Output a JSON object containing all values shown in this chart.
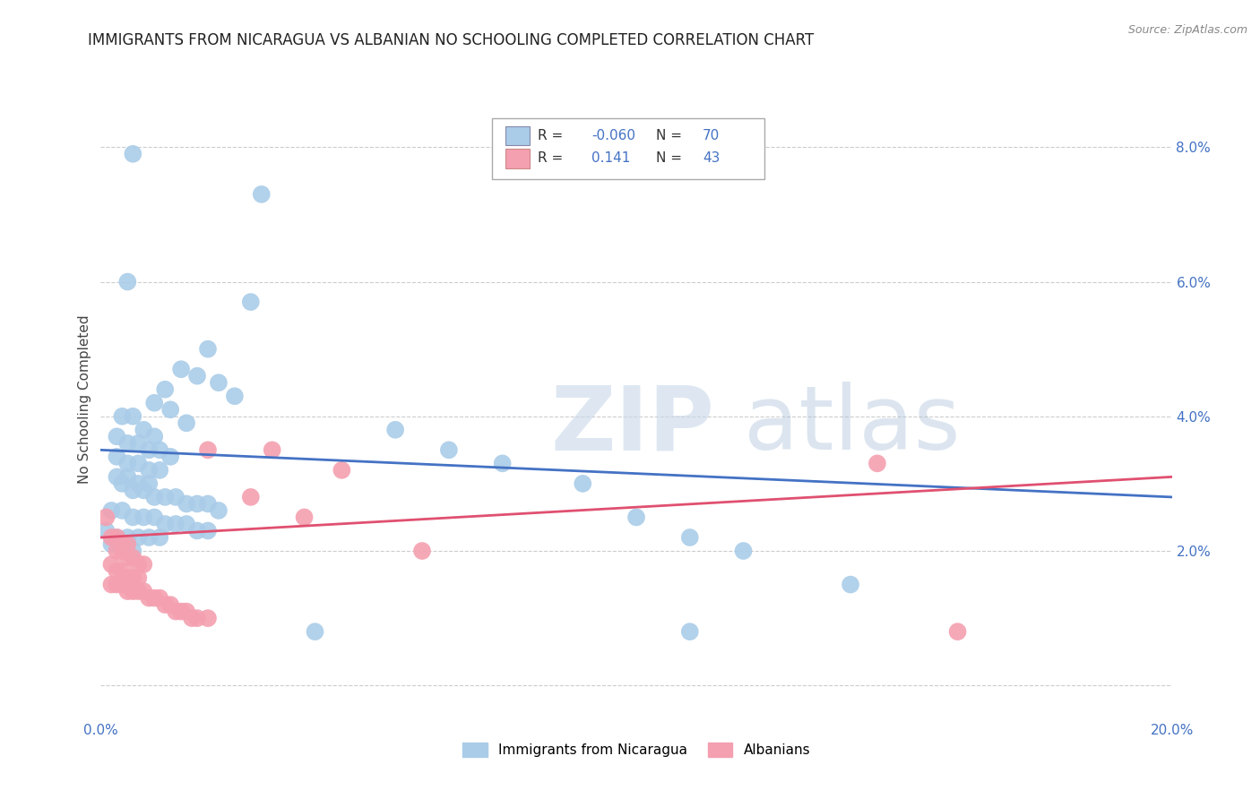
{
  "title": "IMMIGRANTS FROM NICARAGUA VS ALBANIAN NO SCHOOLING COMPLETED CORRELATION CHART",
  "source": "Source: ZipAtlas.com",
  "ylabel": "No Schooling Completed",
  "xlim": [
    0.0,
    0.2
  ],
  "ylim": [
    -0.005,
    0.09
  ],
  "ytick_vals": [
    0.0,
    0.02,
    0.04,
    0.06,
    0.08
  ],
  "yticklabels_right": [
    "",
    "2.0%",
    "4.0%",
    "6.0%",
    "8.0%"
  ],
  "xtick_vals": [
    0.0,
    0.2
  ],
  "xticklabels": [
    "0.0%",
    "20.0%"
  ],
  "legend_entries": [
    {
      "label": "Immigrants from Nicaragua",
      "color": "#aacce8",
      "R": "-0.060",
      "N": "70"
    },
    {
      "label": "Albanians",
      "color": "#f4a0b0",
      "R": "0.141",
      "N": "43"
    }
  ],
  "blue_line_color": "#4472c4",
  "pink_line_color": "#e05070",
  "blue_scatter_color": "#aacce8",
  "pink_scatter_color": "#f4a0b0",
  "right_axis_color": "#4472c4",
  "watermark_zip": "ZIP",
  "watermark_atlas": "atlas",
  "title_fontsize": 12,
  "axis_label_fontsize": 11,
  "tick_fontsize": 11,
  "legend_R_color": "#4472c4",
  "background_color": "#ffffff",
  "grid_color": "#cccccc",
  "blue_trend_x": [
    0.0,
    0.2
  ],
  "blue_trend_y": [
    0.035,
    0.028
  ],
  "pink_trend_x": [
    0.0,
    0.2
  ],
  "pink_trend_y": [
    0.022,
    0.031
  ],
  "blue_scatter": [
    [
      0.006,
      0.079
    ],
    [
      0.03,
      0.073
    ],
    [
      0.005,
      0.06
    ],
    [
      0.028,
      0.057
    ],
    [
      0.02,
      0.05
    ],
    [
      0.015,
      0.047
    ],
    [
      0.018,
      0.046
    ],
    [
      0.022,
      0.045
    ],
    [
      0.012,
      0.044
    ],
    [
      0.025,
      0.043
    ],
    [
      0.01,
      0.042
    ],
    [
      0.013,
      0.041
    ],
    [
      0.004,
      0.04
    ],
    [
      0.006,
      0.04
    ],
    [
      0.016,
      0.039
    ],
    [
      0.008,
      0.038
    ],
    [
      0.01,
      0.037
    ],
    [
      0.003,
      0.037
    ],
    [
      0.005,
      0.036
    ],
    [
      0.007,
      0.036
    ],
    [
      0.009,
      0.035
    ],
    [
      0.011,
      0.035
    ],
    [
      0.013,
      0.034
    ],
    [
      0.003,
      0.034
    ],
    [
      0.005,
      0.033
    ],
    [
      0.007,
      0.033
    ],
    [
      0.009,
      0.032
    ],
    [
      0.011,
      0.032
    ],
    [
      0.003,
      0.031
    ],
    [
      0.005,
      0.031
    ],
    [
      0.007,
      0.03
    ],
    [
      0.009,
      0.03
    ],
    [
      0.004,
      0.03
    ],
    [
      0.006,
      0.029
    ],
    [
      0.008,
      0.029
    ],
    [
      0.01,
      0.028
    ],
    [
      0.012,
      0.028
    ],
    [
      0.014,
      0.028
    ],
    [
      0.016,
      0.027
    ],
    [
      0.018,
      0.027
    ],
    [
      0.02,
      0.027
    ],
    [
      0.022,
      0.026
    ],
    [
      0.002,
      0.026
    ],
    [
      0.004,
      0.026
    ],
    [
      0.006,
      0.025
    ],
    [
      0.008,
      0.025
    ],
    [
      0.01,
      0.025
    ],
    [
      0.012,
      0.024
    ],
    [
      0.014,
      0.024
    ],
    [
      0.016,
      0.024
    ],
    [
      0.018,
      0.023
    ],
    [
      0.02,
      0.023
    ],
    [
      0.001,
      0.023
    ],
    [
      0.003,
      0.022
    ],
    [
      0.005,
      0.022
    ],
    [
      0.007,
      0.022
    ],
    [
      0.009,
      0.022
    ],
    [
      0.011,
      0.022
    ],
    [
      0.002,
      0.021
    ],
    [
      0.004,
      0.021
    ],
    [
      0.006,
      0.02
    ],
    [
      0.055,
      0.038
    ],
    [
      0.065,
      0.035
    ],
    [
      0.075,
      0.033
    ],
    [
      0.09,
      0.03
    ],
    [
      0.1,
      0.025
    ],
    [
      0.11,
      0.022
    ],
    [
      0.12,
      0.02
    ],
    [
      0.14,
      0.015
    ],
    [
      0.04,
      0.008
    ],
    [
      0.11,
      0.008
    ]
  ],
  "pink_scatter": [
    [
      0.001,
      0.025
    ],
    [
      0.002,
      0.022
    ],
    [
      0.003,
      0.022
    ],
    [
      0.004,
      0.021
    ],
    [
      0.005,
      0.021
    ],
    [
      0.003,
      0.02
    ],
    [
      0.004,
      0.02
    ],
    [
      0.005,
      0.019
    ],
    [
      0.006,
      0.019
    ],
    [
      0.007,
      0.018
    ],
    [
      0.008,
      0.018
    ],
    [
      0.002,
      0.018
    ],
    [
      0.003,
      0.017
    ],
    [
      0.004,
      0.017
    ],
    [
      0.005,
      0.016
    ],
    [
      0.006,
      0.016
    ],
    [
      0.007,
      0.016
    ],
    [
      0.002,
      0.015
    ],
    [
      0.003,
      0.015
    ],
    [
      0.004,
      0.015
    ],
    [
      0.005,
      0.014
    ],
    [
      0.006,
      0.014
    ],
    [
      0.007,
      0.014
    ],
    [
      0.008,
      0.014
    ],
    [
      0.009,
      0.013
    ],
    [
      0.01,
      0.013
    ],
    [
      0.011,
      0.013
    ],
    [
      0.012,
      0.012
    ],
    [
      0.013,
      0.012
    ],
    [
      0.014,
      0.011
    ],
    [
      0.015,
      0.011
    ],
    [
      0.016,
      0.011
    ],
    [
      0.017,
      0.01
    ],
    [
      0.018,
      0.01
    ],
    [
      0.02,
      0.01
    ],
    [
      0.02,
      0.035
    ],
    [
      0.032,
      0.035
    ],
    [
      0.045,
      0.032
    ],
    [
      0.028,
      0.028
    ],
    [
      0.038,
      0.025
    ],
    [
      0.06,
      0.02
    ],
    [
      0.145,
      0.033
    ],
    [
      0.16,
      0.008
    ]
  ]
}
